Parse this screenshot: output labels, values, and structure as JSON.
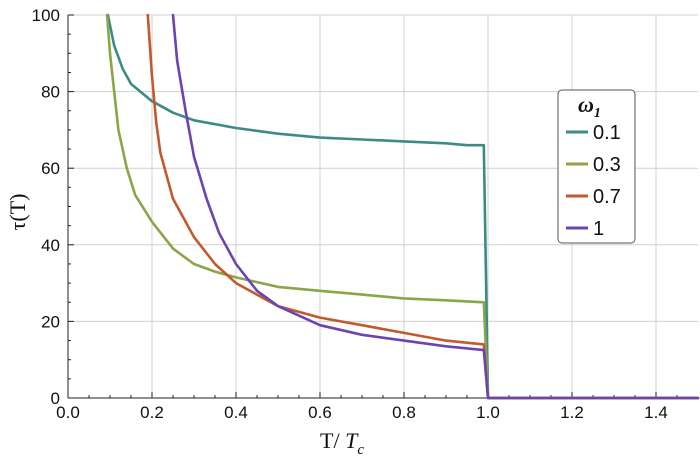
{
  "chart_data": {
    "type": "line",
    "xlabel": {
      "main": "T/ ",
      "italic": "T",
      "sub": "c"
    },
    "ylabel": {
      "main": "τ(T)"
    },
    "xlim": [
      0,
      1.5
    ],
    "ylim": [
      0,
      100
    ],
    "x_ticks": [
      "0.0",
      "0.2",
      "0.4",
      "0.6",
      "0.8",
      "1.0",
      "1.2",
      "1.4"
    ],
    "y_ticks": [
      "0",
      "20",
      "40",
      "60",
      "80",
      "100"
    ],
    "grid": true,
    "legend": {
      "title": "ω",
      "title_sub": "1",
      "placement": "right",
      "entries": [
        "0.1",
        "0.3",
        "0.7",
        "1"
      ]
    },
    "colors": [
      "#3d8a86",
      "#8aa54a",
      "#c35a2e",
      "#6a44b3"
    ],
    "series": [
      {
        "name": "0.1",
        "x": [
          0.095,
          0.11,
          0.13,
          0.15,
          0.2,
          0.25,
          0.3,
          0.4,
          0.5,
          0.6,
          0.7,
          0.8,
          0.9,
          0.95,
          0.99
        ],
        "y": [
          100,
          92,
          86,
          82,
          77.5,
          74.5,
          72.5,
          70.5,
          69,
          68,
          67.5,
          67,
          66.5,
          66,
          66
        ]
      },
      {
        "name": "0.3",
        "x": [
          0.093,
          0.1,
          0.11,
          0.12,
          0.14,
          0.16,
          0.2,
          0.25,
          0.3,
          0.35,
          0.4,
          0.5,
          0.6,
          0.7,
          0.8,
          0.9,
          0.99
        ],
        "y": [
          100,
          90,
          80,
          70,
          60,
          53,
          46,
          39,
          35,
          33,
          31.5,
          29,
          28,
          27,
          26,
          25.5,
          25
        ]
      },
      {
        "name": "0.7",
        "x": [
          0.19,
          0.2,
          0.21,
          0.22,
          0.25,
          0.3,
          0.35,
          0.4,
          0.5,
          0.6,
          0.7,
          0.8,
          0.9,
          0.99
        ],
        "y": [
          100,
          84,
          72,
          64,
          52,
          42,
          35,
          30,
          24,
          21,
          19,
          17,
          15,
          14
        ]
      },
      {
        "name": "1",
        "x": [
          0.25,
          0.26,
          0.28,
          0.3,
          0.33,
          0.36,
          0.4,
          0.45,
          0.5,
          0.6,
          0.7,
          0.8,
          0.9,
          0.99
        ],
        "y": [
          100,
          88,
          75,
          63,
          52,
          43,
          35,
          28,
          24,
          19,
          16.5,
          15,
          13.5,
          12.5
        ]
      }
    ]
  }
}
